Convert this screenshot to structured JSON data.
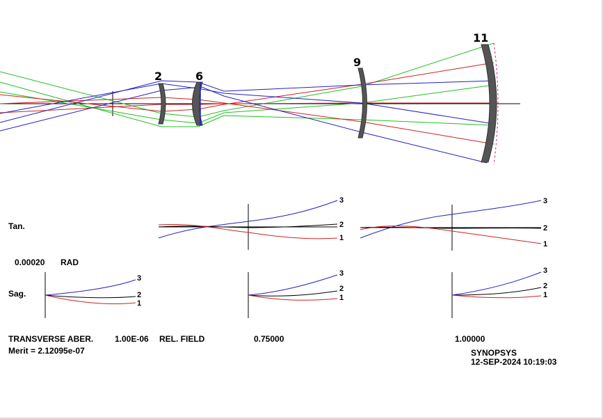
{
  "lens": {
    "surface_labels": [
      "2",
      "6",
      "9",
      "11"
    ]
  },
  "plot": {
    "tan_label": "Tan.",
    "sag_label": "Sag.",
    "scale_value": "0.00020",
    "scale_unit": "RAD",
    "curve_labels": [
      "3",
      "2",
      "1"
    ],
    "colors": {
      "curve3": "#2020c0",
      "curve2": "#000000",
      "curve1": "#d02020"
    }
  },
  "footer": {
    "aber_label": "TRANSVERSE ABER.",
    "wavelength": "1.00E-06",
    "field_label": "REL. FIELD",
    "field_1": "0.75000",
    "field_2": "1.00000",
    "merit": "Merit = 2.12095e-07",
    "brand": "SYNOPSYS",
    "timestamp": "12-SEP-2024 10:19:03"
  }
}
